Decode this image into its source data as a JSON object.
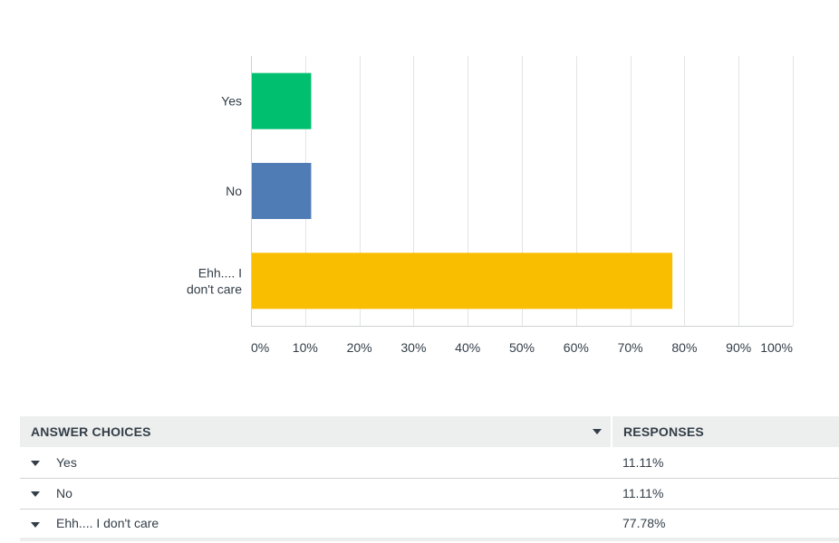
{
  "chart_data": {
    "type": "bar",
    "orientation": "horizontal",
    "categories": [
      "Yes",
      "No",
      "Ehh.... I don't care"
    ],
    "category_lines": [
      [
        "Yes"
      ],
      [
        "No"
      ],
      [
        "Ehh.... I",
        "don't care"
      ]
    ],
    "values": [
      11.11,
      11.11,
      77.78
    ],
    "colors": [
      "#00bf6f",
      "#507cb6",
      "#f9be00"
    ],
    "xlim": [
      0,
      100
    ],
    "xticks": [
      "0%",
      "10%",
      "20%",
      "30%",
      "40%",
      "50%",
      "60%",
      "70%",
      "80%",
      "90%",
      "100%"
    ],
    "grid": true
  },
  "table": {
    "headers": {
      "choices": "ANSWER CHOICES",
      "responses": "RESPONSES"
    },
    "rows": [
      {
        "choice": "Yes",
        "response": "11.11%"
      },
      {
        "choice": "No",
        "response": "11.11%"
      },
      {
        "choice": "Ehh.... I don't care",
        "response": "77.78%"
      }
    ]
  }
}
